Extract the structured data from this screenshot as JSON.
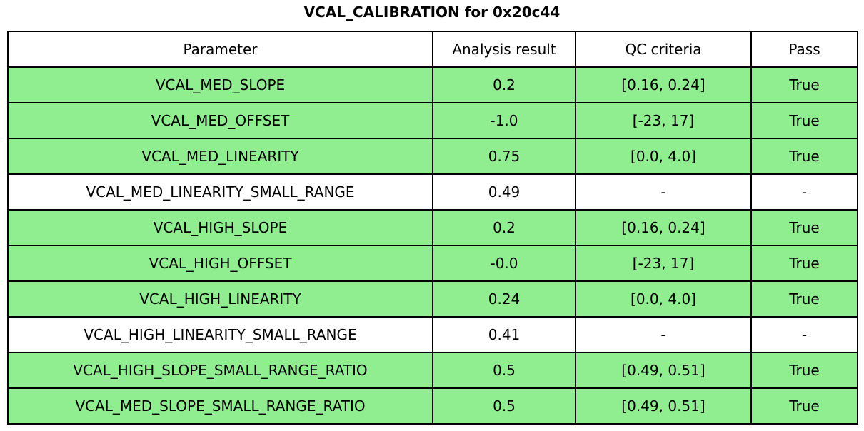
{
  "title": "VCAL_CALIBRATION for 0x20c44",
  "colors": {
    "pass_row_bg": "#90ee90",
    "neutral_row_bg": "#ffffff",
    "border": "#000000",
    "text": "#000000"
  },
  "table": {
    "headers": [
      "Parameter",
      "Analysis result",
      "QC criteria",
      "Pass"
    ],
    "rows": [
      {
        "parameter": "VCAL_MED_SLOPE",
        "analysis_result": "0.2",
        "qc_criteria": "[0.16, 0.24]",
        "pass": "True",
        "highlighted": true
      },
      {
        "parameter": "VCAL_MED_OFFSET",
        "analysis_result": "-1.0",
        "qc_criteria": "[-23, 17]",
        "pass": "True",
        "highlighted": true
      },
      {
        "parameter": "VCAL_MED_LINEARITY",
        "analysis_result": "0.75",
        "qc_criteria": "[0.0, 4.0]",
        "pass": "True",
        "highlighted": true
      },
      {
        "parameter": "VCAL_MED_LINEARITY_SMALL_RANGE",
        "analysis_result": "0.49",
        "qc_criteria": "-",
        "pass": "-",
        "highlighted": false
      },
      {
        "parameter": "VCAL_HIGH_SLOPE",
        "analysis_result": "0.2",
        "qc_criteria": "[0.16, 0.24]",
        "pass": "True",
        "highlighted": true
      },
      {
        "parameter": "VCAL_HIGH_OFFSET",
        "analysis_result": "-0.0",
        "qc_criteria": "[-23, 17]",
        "pass": "True",
        "highlighted": true
      },
      {
        "parameter": "VCAL_HIGH_LINEARITY",
        "analysis_result": "0.24",
        "qc_criteria": "[0.0, 4.0]",
        "pass": "True",
        "highlighted": true
      },
      {
        "parameter": "VCAL_HIGH_LINEARITY_SMALL_RANGE",
        "analysis_result": "0.41",
        "qc_criteria": "-",
        "pass": "-",
        "highlighted": false
      },
      {
        "parameter": "VCAL_HIGH_SLOPE_SMALL_RANGE_RATIO",
        "analysis_result": "0.5",
        "qc_criteria": "[0.49, 0.51]",
        "pass": "True",
        "highlighted": true
      },
      {
        "parameter": "VCAL_MED_SLOPE_SMALL_RANGE_RATIO",
        "analysis_result": "0.5",
        "qc_criteria": "[0.49, 0.51]",
        "pass": "True",
        "highlighted": true
      }
    ]
  },
  "chart_data": {
    "type": "table",
    "title": "VCAL_CALIBRATION for 0x20c44",
    "columns": [
      "Parameter",
      "Analysis result",
      "QC criteria",
      "Pass"
    ],
    "rows": [
      [
        "VCAL_MED_SLOPE",
        "0.2",
        "[0.16, 0.24]",
        "True"
      ],
      [
        "VCAL_MED_OFFSET",
        "-1.0",
        "[-23, 17]",
        "True"
      ],
      [
        "VCAL_MED_LINEARITY",
        "0.75",
        "[0.0, 4.0]",
        "True"
      ],
      [
        "VCAL_MED_LINEARITY_SMALL_RANGE",
        "0.49",
        "-",
        "-"
      ],
      [
        "VCAL_HIGH_SLOPE",
        "0.2",
        "[0.16, 0.24]",
        "True"
      ],
      [
        "VCAL_HIGH_OFFSET",
        "-0.0",
        "[-23, 17]",
        "True"
      ],
      [
        "VCAL_HIGH_LINEARITY",
        "0.24",
        "[0.0, 4.0]",
        "True"
      ],
      [
        "VCAL_HIGH_LINEARITY_SMALL_RANGE",
        "0.41",
        "-",
        "-"
      ],
      [
        "VCAL_HIGH_SLOPE_SMALL_RANGE_RATIO",
        "0.5",
        "[0.49, 0.51]",
        "True"
      ],
      [
        "VCAL_MED_SLOPE_SMALL_RANGE_RATIO",
        "0.5",
        "[0.49, 0.51]",
        "True"
      ]
    ],
    "row_passed": [
      true,
      true,
      true,
      null,
      true,
      true,
      true,
      null,
      true,
      true
    ],
    "legend_position": "none",
    "grid": true
  }
}
